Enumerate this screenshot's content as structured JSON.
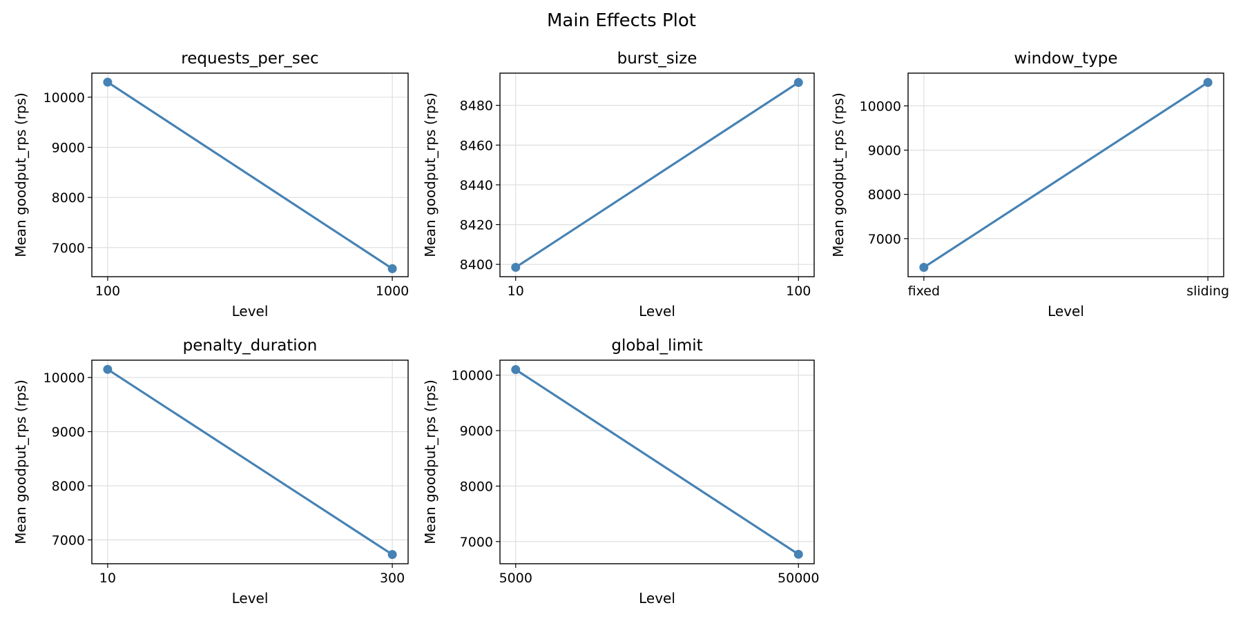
{
  "figure": {
    "title": "Main Effects Plot"
  },
  "chart_data": [
    {
      "type": "line",
      "title": "requests_per_sec",
      "xlabel": "Level",
      "ylabel": "Mean goodput_rps (rps)",
      "categories": [
        "100",
        "1000"
      ],
      "values": [
        10300,
        6580
      ],
      "ylim": [
        6420,
        10480
      ],
      "yticks": [
        7000,
        8000,
        9000,
        10000
      ],
      "grid": true,
      "color": "#4682b4"
    },
    {
      "type": "line",
      "title": "burst_size",
      "xlabel": "Level",
      "ylabel": "Mean goodput_rps (rps)",
      "categories": [
        "10",
        "100"
      ],
      "values": [
        8398.5,
        8491.5
      ],
      "ylim": [
        8393.8,
        8496.2
      ],
      "yticks": [
        8400,
        8420,
        8440,
        8460,
        8480
      ],
      "grid": true,
      "color": "#4682b4"
    },
    {
      "type": "line",
      "title": "window_type",
      "xlabel": "Level",
      "ylabel": "Mean goodput_rps (rps)",
      "categories": [
        "fixed",
        "sliding"
      ],
      "values": [
        6350,
        10530
      ],
      "ylim": [
        6140,
        10740
      ],
      "yticks": [
        7000,
        8000,
        9000,
        10000
      ],
      "grid": true,
      "color": "#4682b4"
    },
    {
      "type": "line",
      "title": "penalty_duration",
      "xlabel": "Level",
      "ylabel": "Mean goodput_rps (rps)",
      "categories": [
        "10",
        "300"
      ],
      "values": [
        10150,
        6730
      ],
      "ylim": [
        6560,
        10320
      ],
      "yticks": [
        7000,
        8000,
        9000,
        10000
      ],
      "grid": true,
      "color": "#4682b4"
    },
    {
      "type": "line",
      "title": "global_limit",
      "xlabel": "Level",
      "ylabel": "Mean goodput_rps (rps)",
      "categories": [
        "5000",
        "50000"
      ],
      "values": [
        10100,
        6770
      ],
      "ylim": [
        6600,
        10270
      ],
      "yticks": [
        7000,
        8000,
        9000,
        10000
      ],
      "grid": true,
      "color": "#4682b4"
    }
  ]
}
